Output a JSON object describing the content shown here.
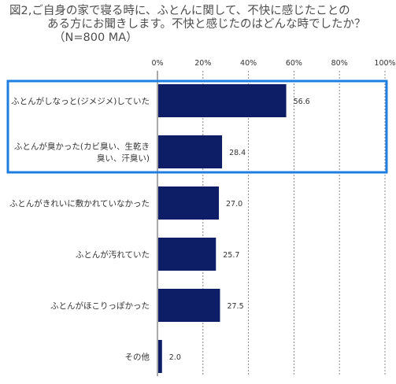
{
  "chart_data": {
    "type": "bar",
    "orientation": "horizontal",
    "title": [
      "図2,ご自身の家で寝る時に、ふとんに関して、不快に感じたことの",
      "ある方にお聞きします。不快と感じたのはどんな時でしたか？",
      "（N=800 MA）"
    ],
    "categories": [
      [
        "ふとんがしなっと(ジメジメ)していた"
      ],
      [
        "ふとんが臭かった(カビ臭い、生乾き",
        "臭い、汗臭い)"
      ],
      [
        "ふとんがきれいに敷かれていなかった"
      ],
      [
        "ふとんが汚れていた"
      ],
      [
        "ふとんがほこりっぽかった"
      ],
      [
        "その他"
      ]
    ],
    "values": [
      56.6,
      28.4,
      27.0,
      25.7,
      27.5,
      2.0
    ],
    "value_labels": [
      "56.6",
      "28.4",
      "27.0",
      "25.7",
      "27.5",
      "2.0"
    ],
    "xlim": [
      0,
      100
    ],
    "xticks": [
      "0%",
      "20%",
      "40%",
      "60%",
      "80%",
      "100%"
    ],
    "grid": true,
    "legend": "none",
    "highlight": {
      "categories": [
        0,
        1
      ],
      "color": "#1e7fe0"
    },
    "colors": {
      "bar": "#0d1e66",
      "grid": "#888888",
      "axis": "#555555"
    }
  }
}
